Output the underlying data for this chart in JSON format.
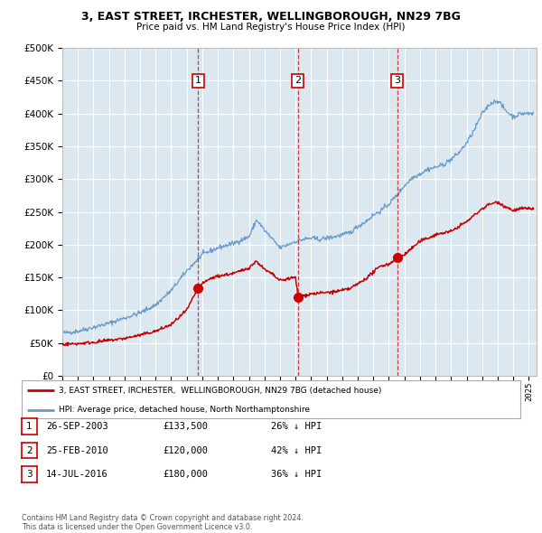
{
  "title": "3, EAST STREET, IRCHESTER, WELLINGBOROUGH, NN29 7BG",
  "subtitle": "Price paid vs. HM Land Registry's House Price Index (HPI)",
  "bg_color": "#dce8f0",
  "grid_color": "#ffffff",
  "transactions": [
    {
      "label": 1,
      "price": 133500,
      "x_year": 2003.733
    },
    {
      "label": 2,
      "price": 120000,
      "x_year": 2010.153
    },
    {
      "label": 3,
      "price": 180000,
      "x_year": 2016.535
    }
  ],
  "legend_line1": "3, EAST STREET, IRCHESTER,  WELLINGBOROUGH, NN29 7BG (detached house)",
  "legend_line2": "HPI: Average price, detached house, North Northamptonshire",
  "table_rows": [
    {
      "num": 1,
      "date": "26-SEP-2003",
      "price": "£133,500",
      "pct": "26% ↓ HPI"
    },
    {
      "num": 2,
      "date": "25-FEB-2010",
      "price": "£120,000",
      "pct": "42% ↓ HPI"
    },
    {
      "num": 3,
      "date": "14-JUL-2016",
      "price": "£180,000",
      "pct": "36% ↓ HPI"
    }
  ],
  "footer": "Contains HM Land Registry data © Crown copyright and database right 2024.\nThis data is licensed under the Open Government Licence v3.0.",
  "red_color": "#cc0000",
  "blue_color": "#6699cc",
  "ylim": [
    0,
    500000
  ],
  "xlim_start": 1995.0,
  "xlim_end": 2025.5,
  "yticks": [
    0,
    50000,
    100000,
    150000,
    200000,
    250000,
    300000,
    350000,
    400000,
    450000,
    500000
  ]
}
